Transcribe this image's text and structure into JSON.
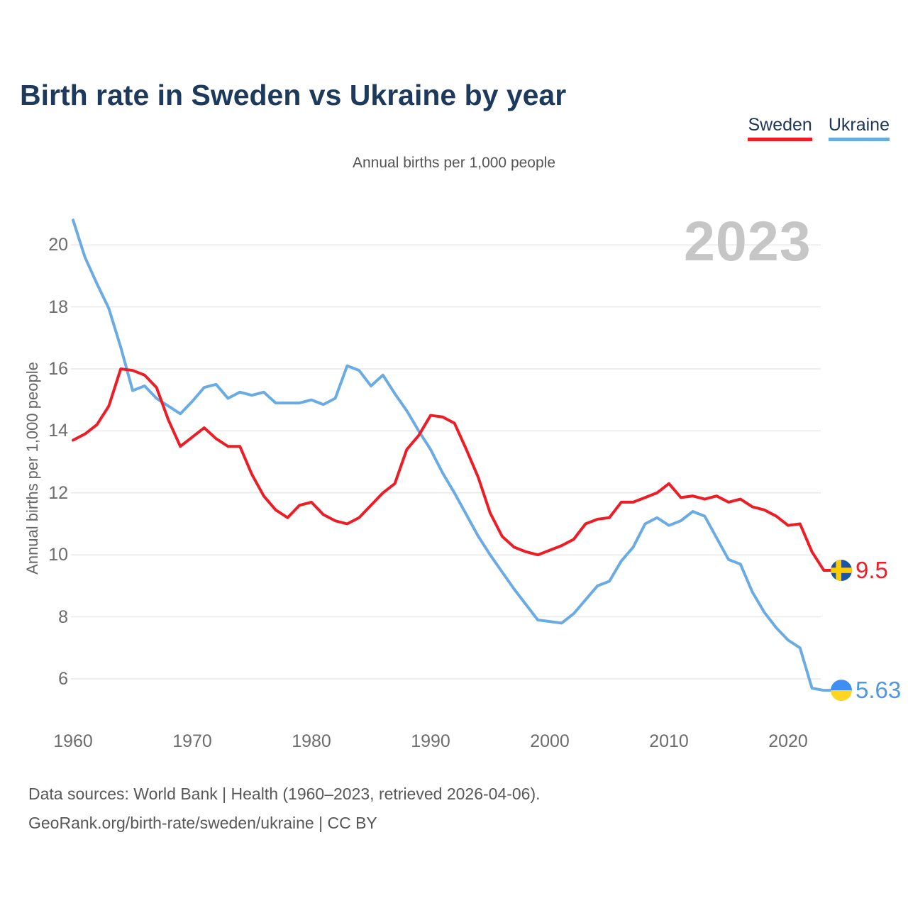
{
  "title": "Birth rate in Sweden vs Ukraine by year",
  "subtitle": "Annual births per 1,000 people",
  "watermark": "2023",
  "legend": {
    "items": [
      {
        "label": "Sweden",
        "color": "#ee1c25"
      },
      {
        "label": "Ukraine",
        "color": "#6aabe3"
      }
    ]
  },
  "y_axis": {
    "title": "Annual births per 1,000 people",
    "ticks": [
      "6",
      "8",
      "10",
      "12",
      "14",
      "16",
      "18",
      "20"
    ]
  },
  "x_axis": {
    "ticks": [
      "1960",
      "1970",
      "1980",
      "1990",
      "2000",
      "2010",
      "2020"
    ]
  },
  "end_labels": [
    {
      "series": "Sweden",
      "value": "9.5",
      "color": "#ee1c25",
      "flag": "sweden-flag"
    },
    {
      "series": "Ukraine",
      "value": "5.63",
      "color": "#4f97e3",
      "flag": "ukraine-flag"
    }
  ],
  "footer": {
    "line1": "Data sources: World Bank | Health (1960–2023, retrieved 2026-04-06).",
    "line2": "GeoRank.org/birth-rate/sweden/ukraine | CC BY"
  },
  "chart_data": {
    "type": "line",
    "title": "Birth rate in Sweden vs Ukraine by year",
    "xlabel": "",
    "ylabel": "Annual births per 1,000 people",
    "ylim": [
      5,
      21.5
    ],
    "xlim": [
      1960,
      2023
    ],
    "grid": true,
    "legend_position": "top-right",
    "x": [
      1960,
      1961,
      1962,
      1963,
      1964,
      1965,
      1966,
      1967,
      1968,
      1969,
      1970,
      1971,
      1972,
      1973,
      1974,
      1975,
      1976,
      1977,
      1978,
      1979,
      1980,
      1981,
      1982,
      1983,
      1984,
      1985,
      1986,
      1987,
      1988,
      1989,
      1990,
      1991,
      1992,
      1993,
      1994,
      1995,
      1996,
      1997,
      1998,
      1999,
      2000,
      2001,
      2002,
      2003,
      2004,
      2005,
      2006,
      2007,
      2008,
      2009,
      2010,
      2011,
      2012,
      2013,
      2014,
      2015,
      2016,
      2017,
      2018,
      2019,
      2020,
      2021,
      2022,
      2023
    ],
    "series": [
      {
        "name": "Sweden",
        "color": "#ee1c25",
        "values": [
          13.7,
          13.9,
          14.2,
          14.8,
          16.0,
          15.95,
          15.8,
          15.4,
          14.35,
          13.5,
          13.8,
          14.1,
          13.75,
          13.5,
          13.5,
          12.6,
          11.9,
          11.45,
          11.2,
          11.6,
          11.7,
          11.3,
          11.1,
          11.0,
          11.2,
          11.6,
          12.0,
          12.3,
          13.4,
          13.85,
          14.5,
          14.45,
          14.25,
          13.4,
          12.5,
          11.35,
          10.6,
          10.25,
          10.1,
          10.0,
          10.15,
          10.3,
          10.5,
          11.0,
          11.15,
          11.2,
          11.7,
          11.7,
          11.85,
          12.0,
          12.3,
          11.85,
          11.9,
          11.8,
          11.9,
          11.7,
          11.8,
          11.55,
          11.45,
          11.25,
          10.95,
          11.0,
          10.1,
          9.5
        ]
      },
      {
        "name": "Ukraine",
        "color": "#6aabe3",
        "values": [
          20.8,
          19.6,
          18.75,
          17.95,
          16.7,
          15.3,
          15.45,
          15.05,
          14.8,
          14.55,
          14.95,
          15.4,
          15.5,
          15.05,
          15.25,
          15.15,
          15.25,
          14.9,
          14.9,
          14.9,
          15.0,
          14.85,
          15.05,
          16.1,
          15.95,
          15.45,
          15.8,
          15.2,
          14.65,
          14.0,
          13.4,
          12.65,
          12.0,
          11.3,
          10.6,
          10.0,
          9.45,
          8.9,
          8.4,
          7.9,
          7.85,
          7.8,
          8.1,
          8.55,
          9.0,
          9.15,
          9.8,
          10.25,
          11.0,
          11.2,
          10.95,
          11.1,
          11.4,
          11.25,
          10.55,
          9.85,
          9.7,
          8.8,
          8.15,
          7.65,
          7.25,
          7.0,
          5.7,
          5.63
        ]
      }
    ],
    "end_markers": [
      {
        "series": "Sweden",
        "flag": "sweden-flag",
        "label": "9.5"
      },
      {
        "series": "Ukraine",
        "flag": "ukraine-flag",
        "label": "5.63"
      }
    ]
  }
}
